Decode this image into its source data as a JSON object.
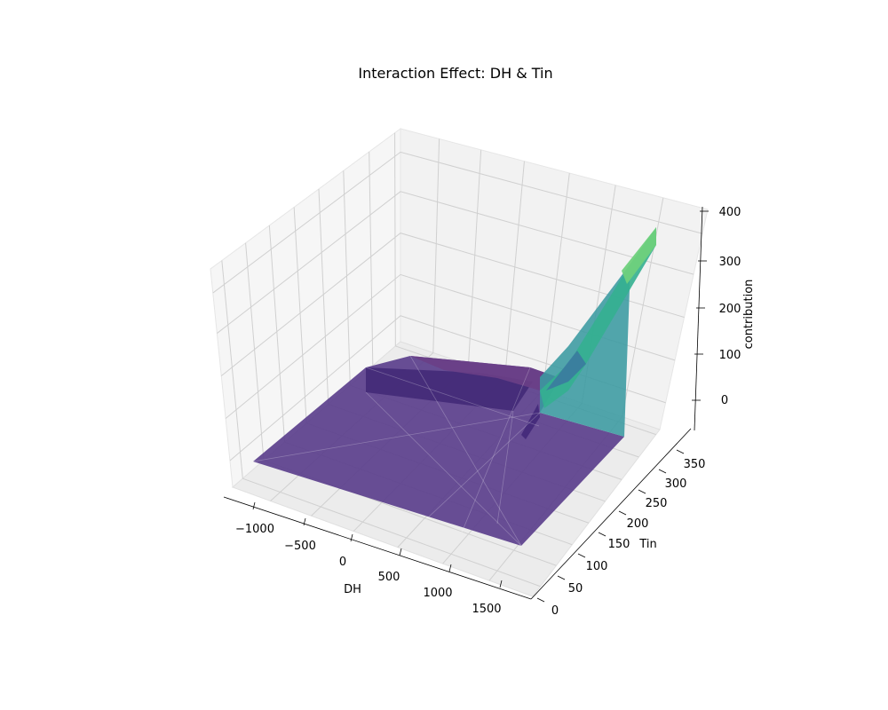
{
  "chart_data": {
    "type": "surface3d",
    "title": "Interaction Effect: DH & Tin",
    "xlabel": "DH",
    "ylabel": "Tin",
    "zlabel": "contribution",
    "x_ticks": [
      "−1000",
      "−500",
      "0",
      "500",
      "1000",
      "1500"
    ],
    "y_ticks": [
      "0",
      "50",
      "100",
      "150",
      "200",
      "250",
      "300",
      "350"
    ],
    "z_ticks": [
      "0",
      "100",
      "200",
      "300",
      "400"
    ],
    "xlim": [
      -1250,
      1750
    ],
    "ylim": [
      -20,
      390
    ],
    "zlim": [
      -60,
      410
    ],
    "colormap": "viridis",
    "surface_vertices": [
      {
        "DH": -1200,
        "Tin": 380,
        "contribution": 5
      },
      {
        "DH": -1250,
        "Tin": 20,
        "contribution": 0
      },
      {
        "DH": 1500,
        "Tin": 20,
        "contribution": 0
      },
      {
        "DH": 1750,
        "Tin": 200,
        "contribution": 0
      },
      {
        "DH": 1750,
        "Tin": 380,
        "contribution": 0
      },
      {
        "DH": -700,
        "Tin": 380,
        "contribution": 0
      },
      {
        "DH": -200,
        "Tin": 380,
        "contribution": 10
      },
      {
        "DH": 500,
        "Tin": 380,
        "contribution": 10
      },
      {
        "DH": 900,
        "Tin": 380,
        "contribution": 15
      },
      {
        "DH": 1600,
        "Tin": 300,
        "contribution": 80
      },
      {
        "DH": 1750,
        "Tin": 250,
        "contribution": 140
      },
      {
        "DH": 1750,
        "Tin": 390,
        "contribution": 280
      },
      {
        "DH": 1750,
        "Tin": 390,
        "contribution": 330
      }
    ]
  }
}
